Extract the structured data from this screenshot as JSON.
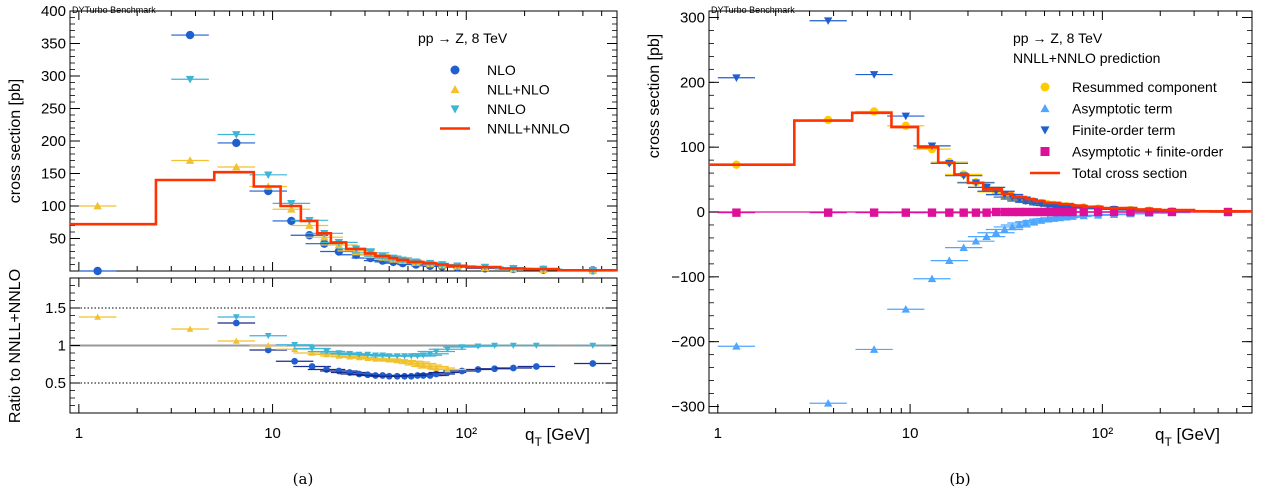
{
  "colors": {
    "nlo": "#1f5fcf",
    "nlo_ratio": "#1a2a8c",
    "nll": "#f2c12e",
    "nnlo": "#3fb5d6",
    "total": "#ff3300",
    "resummed": "#ffcc00",
    "asymptotic": "#4da6ff",
    "finite": "#1f5fcf",
    "asymfin": "#dd1199",
    "ratio_ref": "#999999"
  },
  "chart_data": [
    {
      "type": "line",
      "panel": "a",
      "banner": "DYTurbo Benchmark",
      "process": "pp → Z, 8 TeV",
      "xlabel": "q",
      "xlabel_sub": "T",
      "xlabel_unit": " [GeV]",
      "ylabel": "cross section [pb]",
      "xscale": "log",
      "xlim": [
        0.9,
        600
      ],
      "ylim": [
        0,
        400
      ],
      "xticks": [
        "1",
        "10",
        "10²"
      ],
      "yticks": [
        "50",
        "100",
        "150",
        "200",
        "250",
        "300",
        "350",
        "400"
      ],
      "legend_position": "top-right",
      "series": [
        {
          "name": "NLO",
          "marker": "circle",
          "x": [
            1.25,
            3.75,
            6.5,
            9.5,
            12.5,
            15.5,
            18.5,
            22,
            27,
            32,
            37,
            42,
            47,
            55,
            65,
            75,
            90,
            125,
            175,
            250,
            450
          ],
          "y": [
            0,
            363,
            197,
            123,
            77,
            55,
            42,
            30,
            25,
            20,
            16,
            14,
            12,
            10,
            8,
            7,
            6,
            4,
            3,
            2,
            1
          ]
        },
        {
          "name": "NLL+NLO",
          "marker": "triangle-up",
          "x": [
            1.25,
            3.75,
            6.5,
            9.5,
            12.5,
            15.5,
            18.5,
            22,
            27,
            32,
            37,
            42,
            47,
            55,
            65,
            75,
            90,
            125,
            175,
            250,
            450
          ],
          "y": [
            100,
            170,
            160,
            130,
            95,
            70,
            52,
            40,
            31,
            25,
            21,
            18,
            16,
            13,
            11,
            9,
            7,
            5,
            3,
            2,
            1
          ]
        },
        {
          "name": "NNLO",
          "marker": "triangle-down",
          "x": [
            3.75,
            6.5,
            9.5,
            12.5,
            15.5,
            18.5,
            22,
            27,
            32,
            37,
            42,
            47,
            55,
            65,
            75,
            90,
            125,
            175,
            250,
            450
          ],
          "y": [
            295,
            210,
            148,
            104,
            78,
            58,
            44,
            34,
            28,
            23,
            20,
            17,
            14,
            12,
            10,
            8,
            6,
            4,
            3,
            1
          ]
        },
        {
          "name": "NNLL+NNLO",
          "style": "step",
          "edges": [
            0.9,
            2.5,
            5,
            8,
            11,
            14,
            17,
            20,
            24,
            30,
            34,
            40,
            44,
            50,
            60,
            70,
            80,
            100,
            150,
            200,
            300,
            600
          ],
          "values": [
            72,
            140,
            152,
            130,
            100,
            77,
            58,
            44,
            34,
            27,
            23,
            20,
            17,
            14,
            12,
            10,
            8,
            6,
            4,
            3,
            1
          ]
        }
      ],
      "ratio": {
        "ylabel": "Ratio to NNLL+NNLO",
        "ylim": [
          0.1,
          1.9
        ],
        "yticks": [
          "0.5",
          "1",
          "1.5"
        ],
        "series": [
          {
            "name": "NLO",
            "marker": "circle",
            "x": [
              6.5,
              9.5,
              13,
              16,
              19,
              22,
              25,
              28,
              31,
              34,
              37,
              40,
              44,
              48,
              52,
              56,
              60,
              65,
              70,
              80,
              95,
              115,
              140,
              175,
              230,
              450
            ],
            "y": [
              1.3,
              0.94,
              0.79,
              0.72,
              0.68,
              0.66,
              0.64,
              0.62,
              0.61,
              0.6,
              0.6,
              0.59,
              0.59,
              0.59,
              0.59,
              0.6,
              0.6,
              0.6,
              0.62,
              0.64,
              0.66,
              0.68,
              0.69,
              0.7,
              0.72,
              0.76
            ]
          },
          {
            "name": "NLL+NLO",
            "marker": "triangle-up",
            "x": [
              1.25,
              3.75,
              6.5,
              9.5,
              13,
              16,
              19,
              22,
              25,
              28,
              31,
              34,
              37,
              40,
              44,
              48,
              52,
              56,
              60,
              65,
              70,
              80
            ],
            "y": [
              1.38,
              1.22,
              1.06,
              1.0,
              0.95,
              0.9,
              0.88,
              0.86,
              0.85,
              0.84,
              0.83,
              0.82,
              0.82,
              0.81,
              0.8,
              0.79,
              0.78,
              0.76,
              0.74,
              0.72,
              0.7,
              0.68
            ]
          },
          {
            "name": "NNLO",
            "marker": "triangle-down",
            "x": [
              6.5,
              9.5,
              13,
              16,
              19,
              22,
              25,
              28,
              31,
              34,
              37,
              40,
              44,
              48,
              52,
              56,
              60,
              65,
              70,
              80,
              95,
              115,
              140,
              175,
              230,
              450
            ],
            "y": [
              1.38,
              1.13,
              1.01,
              0.96,
              0.92,
              0.9,
              0.89,
              0.88,
              0.88,
              0.87,
              0.87,
              0.86,
              0.86,
              0.86,
              0.86,
              0.86,
              0.87,
              0.89,
              0.92,
              0.95,
              0.98,
              0.99,
              1.0,
              1.0,
              1.0,
              1.0
            ]
          }
        ]
      }
    },
    {
      "type": "line",
      "panel": "b",
      "banner": "DYTurbo Benchmark",
      "process": "pp → Z, 8 TeV",
      "subtitle": "NNLL+NNLO prediction",
      "xlabel": "q",
      "xlabel_sub": "T",
      "xlabel_unit": " [GeV]",
      "ylabel": "cross section [pb]",
      "xscale": "log",
      "xlim": [
        0.9,
        600
      ],
      "ylim": [
        -310,
        310
      ],
      "xticks": [
        "1",
        "10",
        "10²"
      ],
      "yticks": [
        "−300",
        "−200",
        "−100",
        "0",
        "100",
        "200",
        "300"
      ],
      "legend_position": "top-right",
      "series": [
        {
          "name": "Resummed component",
          "marker": "circle",
          "x": [
            1.25,
            3.75,
            6.5,
            9.5,
            13,
            16,
            19,
            22,
            25,
            28,
            31,
            34,
            37,
            40,
            44,
            48,
            52,
            56,
            60,
            65,
            70,
            80,
            95,
            115,
            140,
            175,
            230,
            450
          ],
          "y": [
            73,
            142,
            155,
            133,
            97,
            77,
            58,
            46,
            38,
            31,
            26,
            23,
            20,
            18,
            16,
            14,
            12,
            11,
            10,
            9,
            8,
            7,
            5,
            4,
            3,
            2,
            1,
            0
          ]
        },
        {
          "name": "Asymptotic term",
          "marker": "triangle-up",
          "x": [
            1.25,
            3.75,
            6.5,
            9.5,
            13,
            16,
            19,
            22,
            25,
            28,
            31,
            34,
            37,
            40,
            44,
            48,
            52,
            56,
            60,
            65,
            70,
            80,
            95,
            115,
            140,
            175,
            230,
            450
          ],
          "y": [
            -207,
            -295,
            -212,
            -150,
            -103,
            -75,
            -55,
            -45,
            -38,
            -32,
            -27,
            -23,
            -20,
            -17,
            -15,
            -13,
            -11,
            -10,
            -9,
            -8,
            -7,
            -6,
            -5,
            -4,
            -3,
            -2,
            -1,
            0
          ]
        },
        {
          "name": "Finite-order term",
          "marker": "triangle-down",
          "x": [
            1.25,
            3.75,
            6.5,
            9.5,
            13,
            16,
            19,
            22,
            25,
            28,
            31,
            34,
            37,
            40,
            44,
            48,
            52,
            56,
            60,
            65,
            70,
            80,
            95,
            115,
            140,
            175,
            230,
            450
          ],
          "y": [
            207,
            295,
            212,
            148,
            102,
            75,
            56,
            45,
            38,
            32,
            27,
            23,
            20,
            17,
            15,
            13,
            11,
            10,
            9,
            8,
            7,
            6,
            5,
            4,
            3,
            2,
            1,
            0
          ]
        },
        {
          "name": "Asymptotic + finite-order",
          "marker": "square",
          "x": [
            1.25,
            3.75,
            6.5,
            9.5,
            13,
            16,
            19,
            22,
            25,
            28,
            31,
            34,
            37,
            40,
            44,
            48,
            52,
            56,
            60,
            65,
            70,
            80,
            95,
            115,
            140,
            175,
            230,
            450
          ],
          "y": [
            -1,
            -1,
            -1,
            -1,
            -1,
            -1,
            -1,
            -1,
            -1,
            0,
            0,
            0,
            0,
            0,
            0,
            0,
            0,
            0,
            0,
            0,
            0,
            0,
            0,
            0,
            0,
            0,
            0,
            0
          ]
        },
        {
          "name": "Total cross section",
          "style": "step",
          "edges": [
            0.9,
            2.5,
            5,
            8,
            11,
            14,
            17,
            20,
            24,
            30,
            34,
            40,
            44,
            50,
            60,
            70,
            80,
            100,
            150,
            200,
            300,
            600
          ],
          "values": [
            73,
            141,
            153,
            131,
            100,
            76,
            58,
            45,
            35,
            28,
            23,
            20,
            17,
            14,
            12,
            10,
            8,
            6,
            4,
            3,
            1
          ]
        }
      ]
    }
  ],
  "captions": [
    "(a)",
    "(b)"
  ]
}
